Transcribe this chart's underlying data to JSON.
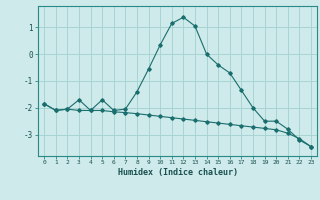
{
  "xlabel": "Humidex (Indice chaleur)",
  "background_color": "#ceeaea",
  "grid_color": "#a8d4d4",
  "line_color": "#1a6e6e",
  "x_values": [
    0,
    1,
    2,
    3,
    4,
    5,
    6,
    7,
    8,
    9,
    10,
    11,
    12,
    13,
    14,
    15,
    16,
    17,
    18,
    19,
    20,
    21,
    22,
    23
  ],
  "curve1": [
    -1.85,
    -2.1,
    -2.05,
    -1.7,
    -2.1,
    -1.7,
    -2.1,
    -2.05,
    -1.4,
    -0.55,
    0.35,
    1.15,
    1.38,
    1.05,
    0.0,
    -0.4,
    -0.7,
    -1.35,
    -2.0,
    -2.5,
    -2.5,
    -2.8,
    -3.2,
    -3.45
  ],
  "curve2": [
    -1.85,
    -2.1,
    -2.05,
    -2.1,
    -2.1,
    -2.1,
    -2.15,
    -2.18,
    -2.22,
    -2.27,
    -2.32,
    -2.37,
    -2.42,
    -2.47,
    -2.52,
    -2.57,
    -2.62,
    -2.67,
    -2.72,
    -2.77,
    -2.82,
    -2.95,
    -3.15,
    -3.45
  ],
  "ylim": [
    -3.8,
    1.8
  ],
  "yticks": [
    -3,
    -2,
    -1,
    0,
    1
  ],
  "xlim": [
    -0.5,
    23.5
  ]
}
